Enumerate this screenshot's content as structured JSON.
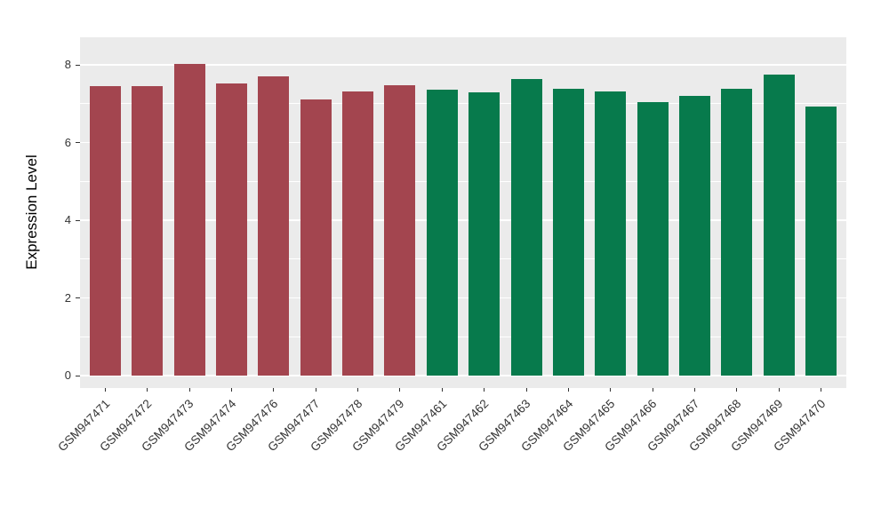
{
  "chart_data": {
    "type": "bar",
    "title": "",
    "xlabel": "",
    "ylabel": "Expression Level",
    "ylim": [
      0,
      8.7
    ],
    "yticks": [
      0,
      2,
      4,
      6,
      8
    ],
    "y_minor_ticks": [
      1,
      3,
      5,
      7
    ],
    "grid": true,
    "legend": "none",
    "panel_bg": "#EBEBEB",
    "grid_color": "#FFFFFF",
    "axis_text_color": "#333333",
    "categories": [
      "GSM947471",
      "GSM947472",
      "GSM947473",
      "GSM947474",
      "GSM947476",
      "GSM947477",
      "GSM947478",
      "GSM947479",
      "GSM947461",
      "GSM947462",
      "GSM947463",
      "GSM947464",
      "GSM947465",
      "GSM947466",
      "GSM947467",
      "GSM947468",
      "GSM947469",
      "GSM947470"
    ],
    "values": [
      7.45,
      7.45,
      8.02,
      7.52,
      7.7,
      7.12,
      7.31,
      7.47,
      7.36,
      7.3,
      7.64,
      7.38,
      7.31,
      7.05,
      7.21,
      7.38,
      7.74,
      6.93
    ],
    "groups": [
      "group1",
      "group1",
      "group1",
      "group1",
      "group1",
      "group1",
      "group1",
      "group1",
      "group2",
      "group2",
      "group2",
      "group2",
      "group2",
      "group2",
      "group2",
      "group2",
      "group2",
      "group2"
    ],
    "group_colors": {
      "group1": "#A3454F",
      "group2": "#077A4C"
    }
  }
}
